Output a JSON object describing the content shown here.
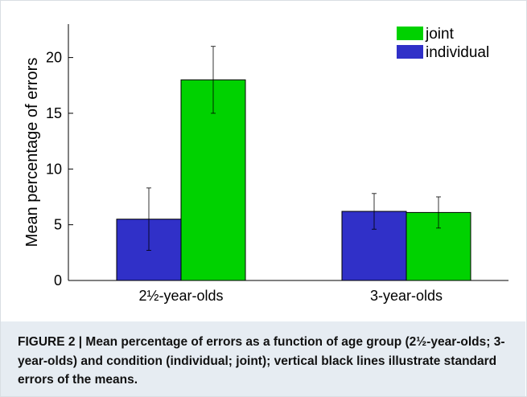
{
  "chart_data": {
    "type": "bar",
    "categories": [
      "2½-year-olds",
      "3-year-olds"
    ],
    "series": [
      {
        "name": "individual",
        "color": "#3030c8",
        "values": [
          5.5,
          6.2
        ],
        "errors": [
          2.8,
          1.6
        ]
      },
      {
        "name": "joint",
        "color": "#00d200",
        "values": [
          18.0,
          6.1
        ],
        "errors": [
          3.0,
          1.4
        ]
      }
    ],
    "legend_order": [
      "joint",
      "individual"
    ],
    "legend_position": "top-right",
    "xlabel": "",
    "ylabel": "Mean percentage of errors",
    "ylim": [
      0,
      23
    ],
    "yticks": [
      0,
      5,
      10,
      15,
      20
    ],
    "grid": false
  },
  "caption": "FIGURE 2 | Mean percentage of errors as a function of age group (2½-year-olds; 3-year-olds) and condition (individual; joint); vertical black lines illustrate standard errors of the means."
}
